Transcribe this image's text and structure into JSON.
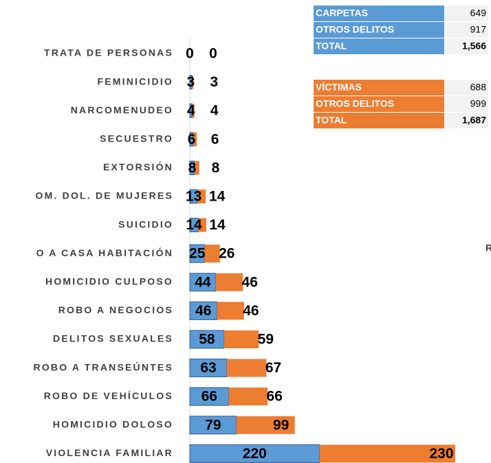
{
  "chart_data": {
    "type": "stacked-barh",
    "categories": [
      "TRATA DE PERSONAS",
      "FEMINICIDIO",
      "NARCOMENUDEO",
      "SECUESTRO",
      "EXTORSIÓN",
      "OM. DOL. DE MUJERES",
      "SUICIDIO",
      "O A CASA HABITACIÓN",
      "HOMICIDIO CULPOSO",
      "ROBO A NEGOCIOS",
      "DELITOS SEXUALES",
      "ROBO A TRANSEÚNTES",
      "ROBO DE VEHÍCULOS",
      "HOMICIDIO DOLOSO",
      "VIOLENCIA FAMILIAR"
    ],
    "series": [
      {
        "name": "CARPETAS",
        "color": "#5b9bd5",
        "values": [
          0,
          3,
          4,
          6,
          8,
          13,
          14,
          25,
          44,
          46,
          58,
          63,
          66,
          79,
          220
        ]
      },
      {
        "name": "VÍCTIMAS",
        "color": "#ed7d31",
        "values": [
          0,
          3,
          4,
          6,
          8,
          14,
          14,
          26,
          46,
          46,
          59,
          67,
          66,
          99,
          230
        ]
      }
    ],
    "xlim": [
      0,
      450
    ],
    "annotation": "R"
  },
  "tables": [
    {
      "rows": [
        [
          "OTROS DELITOS",
          "917"
        ],
        [
          "TOTAL",
          "1,566"
        ]
      ],
      "first": "649"
    },
    {
      "rows": [
        [
          "OTROS DELITOS",
          "999"
        ],
        [
          "TOTAL",
          "1,687"
        ]
      ],
      "first": "688"
    }
  ]
}
